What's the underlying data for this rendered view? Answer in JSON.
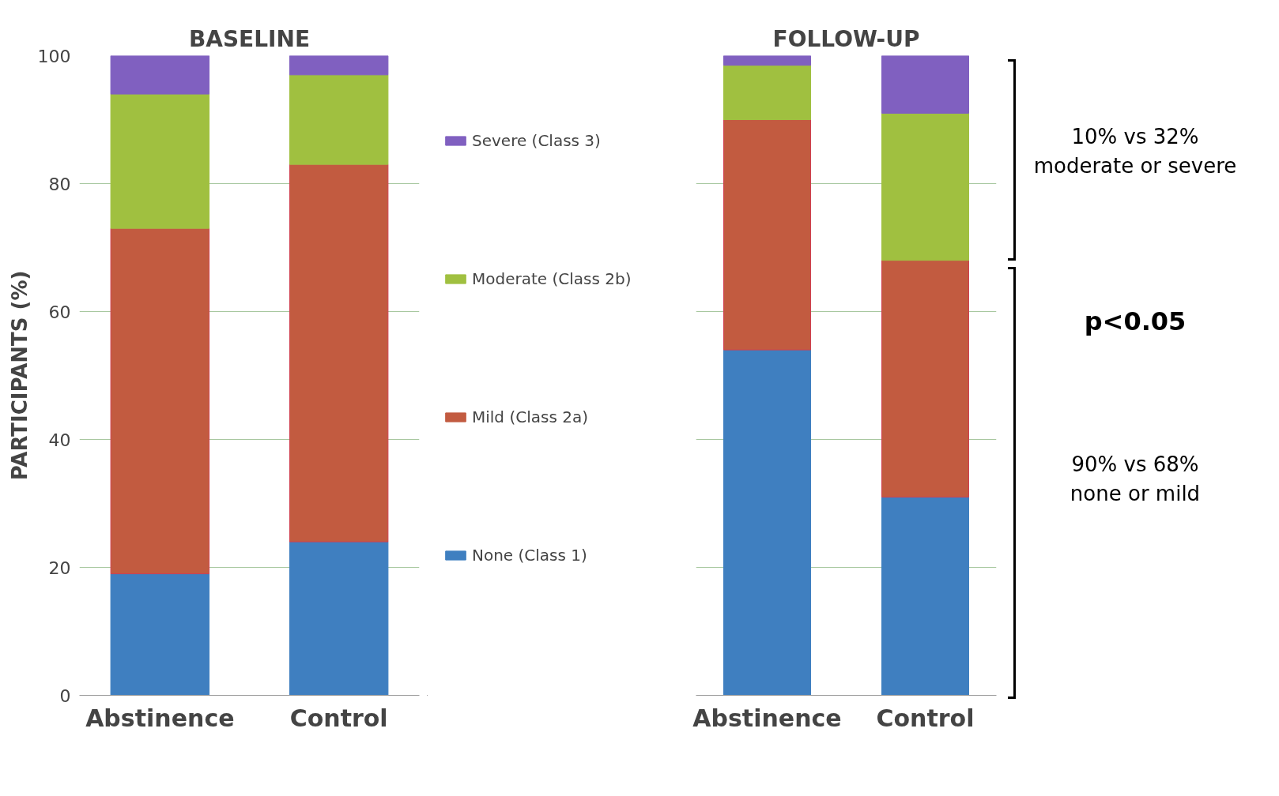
{
  "chart_data": [
    {
      "type": "bar",
      "title": "BASELINE",
      "ylabel": "PARTICIPANTS (%)",
      "categories": [
        "Abstinence",
        "Control"
      ],
      "stacked": true,
      "ylim": [
        0,
        100
      ],
      "yticks": [
        0,
        20,
        40,
        60,
        80,
        100
      ],
      "grid": "y",
      "legend": "right",
      "series": [
        {
          "name": "None (Class 1)",
          "color": "#3f7fc0",
          "values": [
            19,
            24
          ]
        },
        {
          "name": "Mild (Class 2a)",
          "color": "#c25b40",
          "values": [
            54,
            59
          ]
        },
        {
          "name": "Moderate (Class 2b)",
          "color": "#a0c040",
          "values": [
            21,
            14
          ]
        },
        {
          "name": "Severe (Class 3)",
          "color": "#8060c0",
          "values": [
            6,
            3
          ]
        }
      ]
    },
    {
      "type": "bar",
      "title": "FOLLOW-UP",
      "categories": [
        "Abstinence",
        "Control"
      ],
      "stacked": true,
      "ylim": [
        0,
        100
      ],
      "yticks": [
        0,
        20,
        40,
        60,
        80,
        100
      ],
      "grid": "y",
      "tick_labels": "x",
      "series": [
        {
          "color": "#3f7fc0",
          "values": [
            54,
            31
          ]
        },
        {
          "color": "#c25b40",
          "values": [
            36,
            37
          ]
        },
        {
          "color": "#a0c040",
          "values": [
            8.5,
            23
          ]
        },
        {
          "color": "#8060c0",
          "values": [
            1.5,
            9
          ]
        }
      ],
      "annotations": [
        "10% vs 32%\nmoderate or severe",
        "p<0.05",
        "90% vs 68%\nnone or mild"
      ]
    }
  ]
}
